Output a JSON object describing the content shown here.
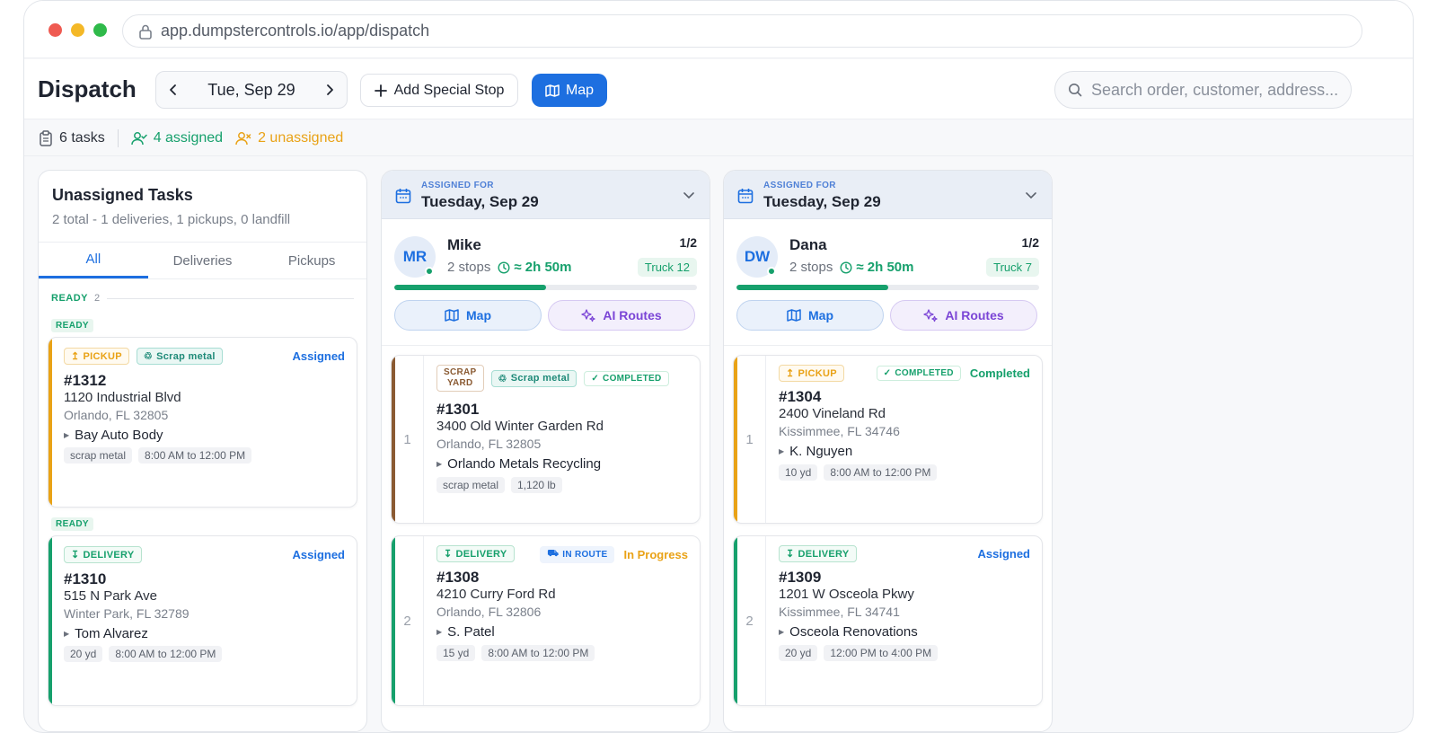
{
  "browser": {
    "url": "app.dumpstercontrols.io/app/dispatch"
  },
  "header": {
    "title": "Dispatch",
    "date_label": "Tue, Sep 29",
    "add_stop_label": "Add Special Stop",
    "map_label": "Map",
    "search_placeholder": "Search order, customer, address..."
  },
  "summary": {
    "tasks": "6 tasks",
    "assigned": "4 assigned",
    "unassigned": "2 unassigned"
  },
  "colors": {
    "accent": "#1d6fe0",
    "green": "#16a06c",
    "orange": "#e9a216",
    "purple": "#7b45d6",
    "brown": "#8a5a32"
  },
  "unassigned": {
    "title": "Unassigned Tasks",
    "subtitle": "2 total - 1 deliveries, 1 pickups, 0 landfill",
    "tabs": [
      "All",
      "Deliveries",
      "Pickups"
    ],
    "section_label": "READY",
    "section_count": "2",
    "cards": [
      {
        "ready": "READY",
        "type": "PICKUP",
        "material": "Scrap metal",
        "status": "Assigned",
        "number": "#1312",
        "address": "1120 Industrial Blvd",
        "city": "Orlando, FL 32805",
        "customer": "Bay Auto Body",
        "chips": [
          "scrap metal",
          "8:00 AM to 12:00 PM"
        ]
      },
      {
        "ready": "READY",
        "type": "DELIVERY",
        "status": "Assigned",
        "number": "#1310",
        "address": "515 N Park Ave",
        "city": "Winter Park, FL 32789",
        "customer": "Tom Alvarez",
        "chips": [
          "20 yd",
          "8:00 AM to 12:00 PM"
        ]
      }
    ]
  },
  "routes": [
    {
      "assigned_for": "ASSIGNED FOR",
      "date": "Tuesday, Sep 29",
      "initials": "MR",
      "driver": "Mike",
      "stops": "2 stops",
      "eta": "≈ 2h 50m",
      "ratio": "1/2",
      "truck": "Truck 12",
      "progress": 0.5,
      "map_label": "Map",
      "ai_label": "AI Routes",
      "stops_list": [
        {
          "index": "1",
          "yard_line1": "SCRAP",
          "yard_line2": "YARD",
          "material": "Scrap metal",
          "completed": "COMPLETED",
          "number": "#1301",
          "address": "3400 Old Winter Garden Rd",
          "city": "Orlando, FL 32805",
          "customer": "Orlando Metals Recycling",
          "chips": [
            "scrap metal",
            "1,120 lb"
          ]
        },
        {
          "index": "2",
          "type": "DELIVERY",
          "route": "IN ROUTE",
          "status": "In Progress",
          "number": "#1308",
          "address": "4210 Curry Ford Rd",
          "city": "Orlando, FL 32806",
          "customer": "S. Patel",
          "chips": [
            "15 yd",
            "8:00 AM to 12:00 PM"
          ]
        }
      ]
    },
    {
      "assigned_for": "ASSIGNED FOR",
      "date": "Tuesday, Sep 29",
      "initials": "DW",
      "driver": "Dana",
      "stops": "2 stops",
      "eta": "≈ 2h 50m",
      "ratio": "1/2",
      "truck": "Truck 7",
      "progress": 0.5,
      "map_label": "Map",
      "ai_label": "AI Routes",
      "stops_list": [
        {
          "index": "1",
          "type": "PICKUP",
          "completed": "COMPLETED",
          "status": "Completed",
          "number": "#1304",
          "address": "2400 Vineland Rd",
          "city": "Kissimmee, FL 34746",
          "customer": "K. Nguyen",
          "chips": [
            "10 yd",
            "8:00 AM to 12:00 PM"
          ]
        },
        {
          "index": "2",
          "type": "DELIVERY",
          "status": "Assigned",
          "number": "#1309",
          "address": "1201 W Osceola Pkwy",
          "city": "Kissimmee, FL 34741",
          "customer": "Osceola Renovations",
          "chips": [
            "20 yd",
            "12:00 PM to 4:00 PM"
          ]
        }
      ]
    }
  ]
}
